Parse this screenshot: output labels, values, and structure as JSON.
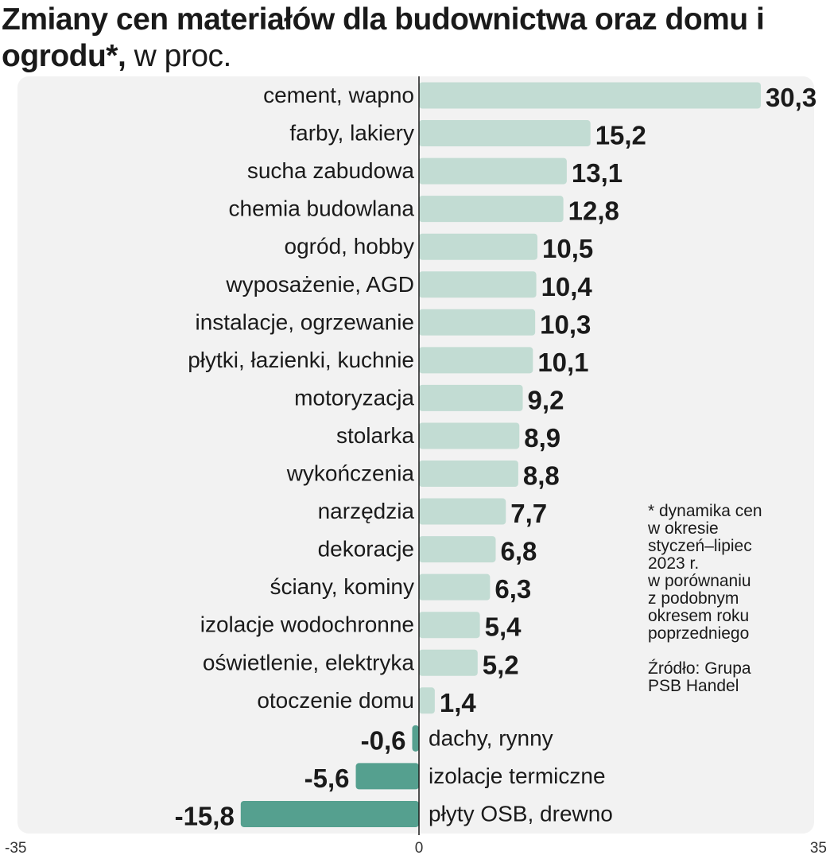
{
  "title": {
    "bold_part": "Zmiany cen materiałów dla budownictwa oraz domu i ogrodu*,",
    "light_part": "w proc."
  },
  "footnote": "* dynamika cen\nw okresie\nstyczeń–lipiec\n2023 r.\nw porównaniu\nz podobnym\nokresem roku\npoprzedniego",
  "source": "Źródło: Grupa\nPSB Handel",
  "colors": {
    "positive_bar": "#c2dcd3",
    "negative_bar": "#55a08f",
    "panel_background": "#f2f2f2",
    "axis": "#1a1a1a"
  },
  "chart_data": {
    "type": "bar",
    "orientation": "horizontal",
    "unit": "%",
    "xlim": [
      -35,
      35
    ],
    "x_ticks": [
      "-35",
      "0",
      "35"
    ],
    "categories": [
      "cement, wapno",
      "farby, lakiery",
      "sucha zabudowa",
      "chemia budowlana",
      "ogród, hobby",
      "wyposażenie, AGD",
      "instalacje, ogrzewanie",
      "płytki, łazienki, kuchnie",
      "motoryzacja",
      "stolarka",
      "wykończenia",
      "narzędzia",
      "dekoracje",
      "ściany, kominy",
      "izolacje wodochronne",
      "oświetlenie, elektryka",
      "otoczenie domu",
      "dachy, rynny",
      "izolacje termiczne",
      "płyty OSB, drewno"
    ],
    "values": [
      30.3,
      15.2,
      13.1,
      12.8,
      10.5,
      10.4,
      10.3,
      10.1,
      9.2,
      8.9,
      8.8,
      7.7,
      6.8,
      6.3,
      5.4,
      5.2,
      1.4,
      -0.6,
      -5.6,
      -15.8
    ],
    "value_labels": [
      "30,3",
      "15,2",
      "13,1",
      "12,8",
      "10,5",
      "10,4",
      "10,3",
      "10,1",
      "9,2",
      "8,9",
      "8,8",
      "7,7",
      "6,8",
      "6,3",
      "5,4",
      "5,2",
      "1,4",
      "-0,6",
      "-5,6",
      "-15,8"
    ]
  }
}
